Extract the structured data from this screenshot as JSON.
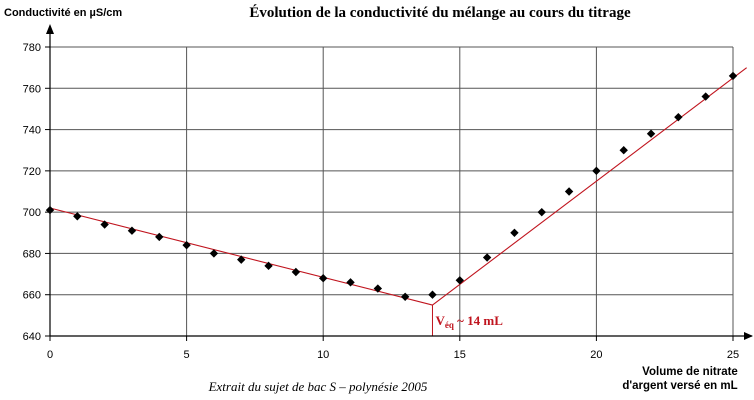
{
  "chart_data": {
    "type": "scatter",
    "title": "Évolution de la conductivité du mélange au cours du titrage",
    "ylabel": "Conductivité en µS/cm",
    "xlabel_line1": "Volume de nitrate",
    "xlabel_line2": "d'argent versé en mL",
    "xlim": [
      0,
      25
    ],
    "ylim": [
      640,
      780
    ],
    "x_ticks": [
      0,
      5,
      10,
      15,
      20,
      25
    ],
    "y_ticks": [
      640,
      660,
      680,
      700,
      720,
      740,
      760,
      780
    ],
    "x_tick_labels": [
      "0",
      "5",
      "10",
      "15",
      "20",
      "25"
    ],
    "y_tick_labels": [
      "640",
      "660",
      "680",
      "700",
      "720",
      "740",
      "760",
      "780"
    ],
    "grid": true,
    "series": [
      {
        "x": [
          0,
          1,
          2,
          3,
          4,
          5,
          6,
          7,
          8,
          9,
          10,
          11,
          12,
          13,
          14,
          15,
          16,
          17,
          18,
          19,
          20,
          21,
          22,
          23,
          24,
          25
        ],
        "y": [
          701,
          698,
          694,
          691,
          688,
          684,
          680,
          677,
          674,
          671,
          668,
          666,
          663,
          659,
          660,
          667,
          678,
          690,
          700,
          710,
          720,
          730,
          738,
          746,
          756,
          766
        ]
      }
    ],
    "fit_lines": [
      {
        "x": [
          0,
          14
        ],
        "y": [
          702,
          655
        ]
      },
      {
        "x": [
          14,
          25.5
        ],
        "y": [
          655,
          770
        ]
      }
    ],
    "equivalence": {
      "x": 14,
      "label_prefix": "V",
      "label_sub": "éq",
      "label_suffix": " ~ 14 mL",
      "color": "#c0141e"
    },
    "caption": "Extrait du sujet de bac S – polynésie 2005",
    "colors": {
      "fit": "#c0141e",
      "marker": "#000000",
      "grid": "#555555",
      "axis": "#000000"
    }
  }
}
